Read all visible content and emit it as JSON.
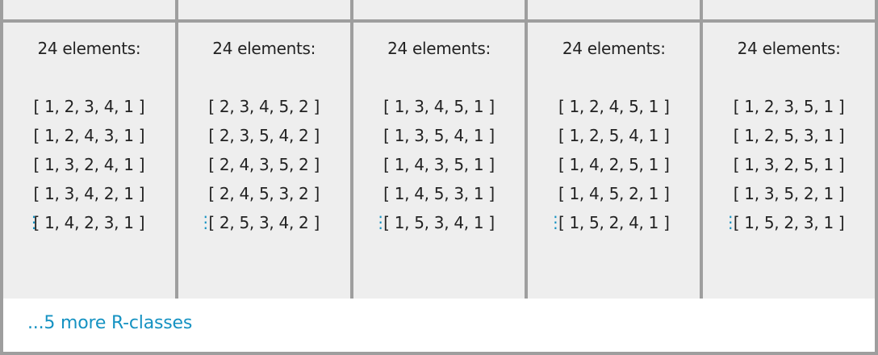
{
  "columns": [
    {
      "count_label": "24 elements:",
      "permutations": [
        "[ 1, 2, 3, 4, 1 ]",
        "[ 1, 2, 4, 3, 1 ]",
        "[ 1, 3, 2, 4, 1 ]",
        "[ 1, 3, 4, 2, 1 ]",
        "[ 1, 4, 2, 3, 1 ]"
      ],
      "more_indicator": "⋮"
    },
    {
      "count_label": "24 elements:",
      "permutations": [
        "[ 2, 3, 4, 5, 2 ]",
        "[ 2, 3, 5, 4, 2 ]",
        "[ 2, 4, 3, 5, 2 ]",
        "[ 2, 4, 5, 3, 2 ]",
        "[ 2, 5, 3, 4, 2 ]"
      ],
      "more_indicator": "⋮"
    },
    {
      "count_label": "24 elements:",
      "permutations": [
        "[ 1, 3, 4, 5, 1 ]",
        "[ 1, 3, 5, 4, 1 ]",
        "[ 1, 4, 3, 5, 1 ]",
        "[ 1, 4, 5, 3, 1 ]",
        "[ 1, 5, 3, 4, 1 ]"
      ],
      "more_indicator": "⋮"
    },
    {
      "count_label": "24 elements:",
      "permutations": [
        "[ 1, 2, 4, 5, 1 ]",
        "[ 1, 2, 5, 4, 1 ]",
        "[ 1, 4, 2, 5, 1 ]",
        "[ 1, 4, 5, 2, 1 ]",
        "[ 1, 5, 2, 4, 1 ]"
      ],
      "more_indicator": "⋮"
    },
    {
      "count_label": "24 elements:",
      "permutations": [
        "[ 1, 2, 3, 5, 1 ]",
        "[ 1, 2, 5, 3, 1 ]",
        "[ 1, 3, 2, 5, 1 ]",
        "[ 1, 3, 5, 2, 1 ]",
        "[ 1, 5, 2, 3, 1 ]"
      ],
      "more_indicator": "⋮"
    }
  ],
  "footer": {
    "more_label": "...5 more R-classes"
  },
  "colors": {
    "link": "#1592c2",
    "cell_bg": "#eeeeee",
    "border": "#9e9e9e",
    "text": "#222222"
  }
}
